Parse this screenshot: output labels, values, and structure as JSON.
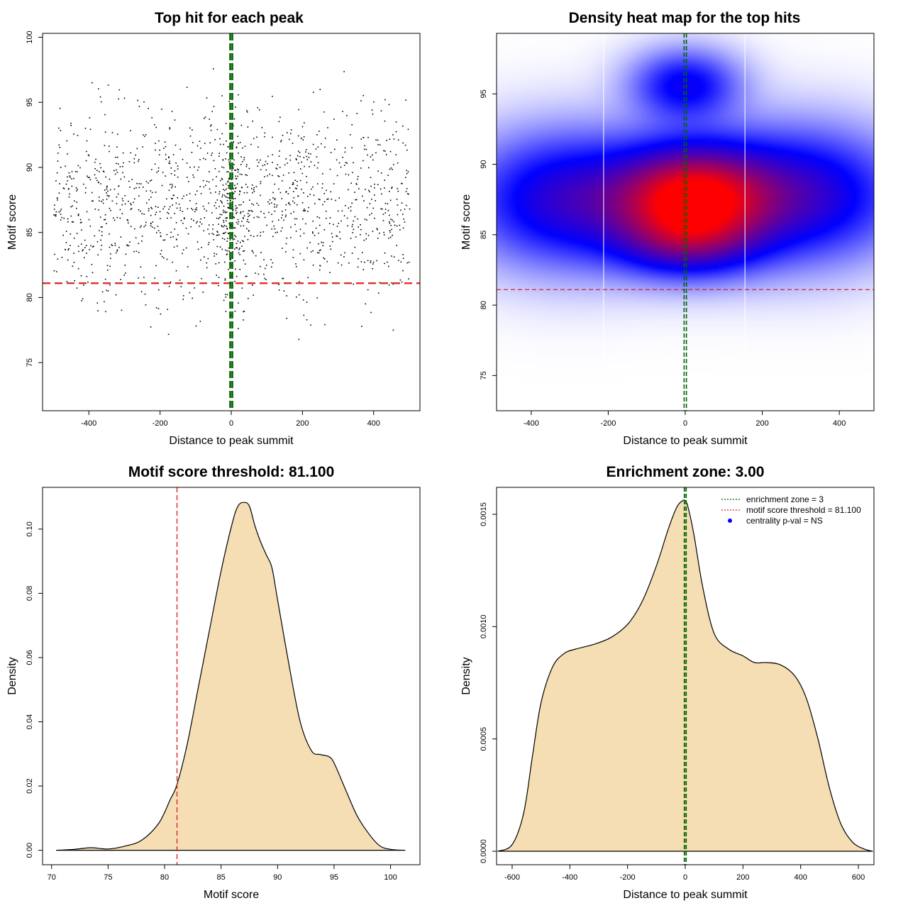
{
  "colors": {
    "threshold": "#dd2222",
    "zone": "#006400",
    "fill": "#f5deb3",
    "points": "#000000",
    "heat_low": "#0000ff",
    "heat_high": "#ff0000"
  },
  "chart_data": [
    {
      "type": "scatter",
      "title": "Top hit for each peak",
      "xlabel": "Distance to peak summit",
      "ylabel": "Motif score",
      "xlim": [
        -530,
        530
      ],
      "ylim": [
        71.3,
        100.3
      ],
      "x_ticks": [
        -400,
        -200,
        0,
        200,
        400
      ],
      "y_ticks": [
        75,
        80,
        85,
        90,
        95,
        100
      ],
      "hlines": [
        81.1
      ],
      "vlines": [
        -3,
        3
      ],
      "n_points": 1500,
      "score_mean": 87.2,
      "score_sd": 3.6,
      "distance_range": [
        -500,
        500
      ]
    },
    {
      "type": "heatmap",
      "title": "Density heat map for the top hits",
      "xlabel": "Distance to peak summit",
      "ylabel": "Motif score",
      "xlim": [
        -490,
        490
      ],
      "ylim": [
        72.5,
        99.3
      ],
      "x_ticks": [
        -400,
        -200,
        0,
        200,
        400
      ],
      "y_ticks": [
        75,
        80,
        85,
        90,
        95
      ],
      "hlines": [
        81.1
      ],
      "vlines": [
        -3,
        3
      ],
      "white_vlines": [
        -212,
        155
      ],
      "density_blobs": [
        {
          "x": 20,
          "y": 87.4,
          "sx": 130,
          "sy": 2.5,
          "w": 1.0
        },
        {
          "x": -300,
          "y": 87.5,
          "sx": 170,
          "sy": 3.0,
          "w": 0.45
        },
        {
          "x": 300,
          "y": 87.8,
          "sx": 170,
          "sy": 3.0,
          "w": 0.45
        },
        {
          "x": 0,
          "y": 95.6,
          "sx": 90,
          "sy": 1.6,
          "w": 0.35
        },
        {
          "x": 0,
          "y": 84.2,
          "sx": 120,
          "sy": 1.5,
          "w": 0.25
        }
      ]
    },
    {
      "type": "area",
      "title": "Motif score threshold: 81.100",
      "xlabel": "Motif score",
      "ylabel": "Density",
      "xlim": [
        69.2,
        102.6
      ],
      "ylim": [
        -0.0045,
        0.113
      ],
      "x_ticks": [
        70,
        75,
        80,
        85,
        90,
        95,
        100
      ],
      "y_ticks": [
        0.0,
        0.02,
        0.04,
        0.06,
        0.08,
        0.1
      ],
      "y_tick_labels": [
        "0.00",
        "0.02",
        "0.04",
        "0.06",
        "0.08",
        "0.10"
      ],
      "vlines": [
        81.1
      ],
      "x": [
        70.4,
        72,
        73.5,
        75,
        76.5,
        78,
        79.5,
        80.5,
        81.1,
        82,
        83,
        84,
        85,
        86,
        86.5,
        87,
        87.5,
        88,
        88.5,
        89,
        89.5,
        90,
        91,
        92,
        93,
        93.8,
        94.5,
        95,
        96,
        97,
        98,
        99,
        100,
        101.3
      ],
      "y": [
        0,
        0.0003,
        0.0008,
        0.0004,
        0.0013,
        0.0032,
        0.0085,
        0.0158,
        0.0205,
        0.033,
        0.051,
        0.069,
        0.087,
        0.102,
        0.1072,
        0.1083,
        0.1072,
        0.101,
        0.096,
        0.092,
        0.088,
        0.078,
        0.058,
        0.04,
        0.031,
        0.0298,
        0.0292,
        0.0272,
        0.019,
        0.011,
        0.0055,
        0.0015,
        0.0003,
        0
      ]
    },
    {
      "type": "area",
      "title": "Enrichment zone: 3.00",
      "xlabel": "Distance to peak summit",
      "ylabel": "Density",
      "xlim": [
        -654,
        654
      ],
      "ylim": [
        -6e-05,
        0.00162
      ],
      "x_ticks": [
        -600,
        -400,
        -200,
        0,
        200,
        400,
        600
      ],
      "y_ticks": [
        0.0,
        0.0005,
        0.001,
        0.0015
      ],
      "y_tick_labels": [
        "0.0000",
        "0.0005",
        "0.0010",
        "0.0015"
      ],
      "vlines": [
        -3,
        3
      ],
      "x": [
        -650,
        -600,
        -560,
        -530,
        -500,
        -460,
        -420,
        -380,
        -320,
        -260,
        -200,
        -150,
        -100,
        -60,
        -30,
        -10,
        0,
        10,
        30,
        60,
        100,
        150,
        200,
        240,
        280,
        330,
        380,
        420,
        460,
        500,
        540,
        580,
        620,
        650
      ],
      "y": [
        0,
        3e-05,
        0.00017,
        0.00042,
        0.00066,
        0.00082,
        0.00088,
        0.0009,
        0.00092,
        0.00095,
        0.00101,
        0.00111,
        0.00127,
        0.00143,
        0.00153,
        0.00156,
        0.00156,
        0.00153,
        0.00141,
        0.00118,
        0.00097,
        0.0009,
        0.00087,
        0.00084,
        0.00084,
        0.00083,
        0.00078,
        0.00068,
        0.0005,
        0.00028,
        0.00012,
        4e-05,
        1e-05,
        0
      ],
      "legend": [
        "enrichment zone = 3",
        "motif score threshold = 81.100",
        "centrality p-val = NS"
      ],
      "legend_position": "top-right"
    }
  ]
}
